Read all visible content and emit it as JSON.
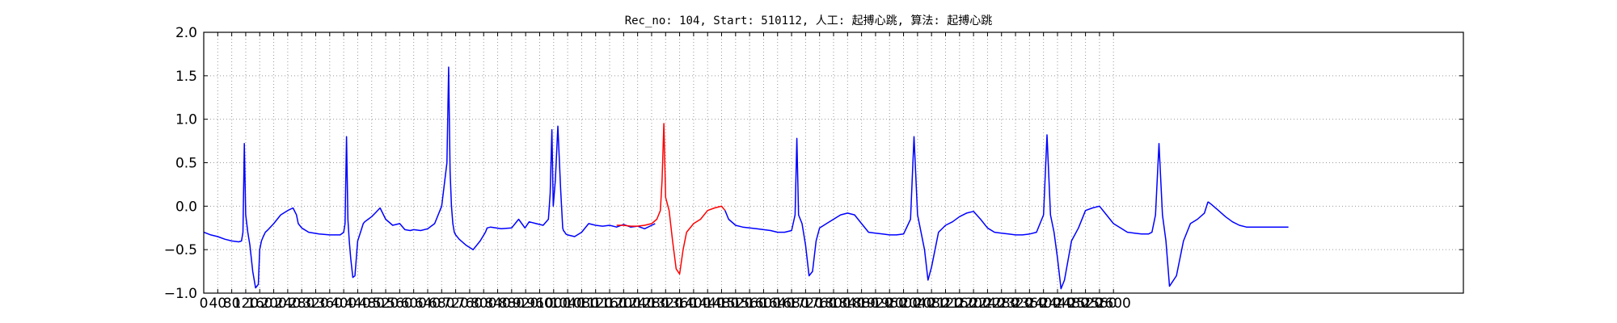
{
  "chart_data": {
    "type": "line",
    "title": "Rec_no: 104, Start: 510112, 人工: 起搏心跳, 算法: 起搏心跳",
    "xlabel": "",
    "ylabel": "",
    "xlim": [
      0,
      3600
    ],
    "ylim": [
      -1.0,
      2.0
    ],
    "grid": true,
    "xticks": [
      0,
      40,
      80,
      120,
      160,
      200,
      240,
      280,
      320,
      360,
      400,
      440,
      480,
      520,
      560,
      600,
      640,
      680,
      720,
      760,
      800,
      840,
      880,
      920,
      960,
      1000,
      1040,
      1080,
      1120,
      1160,
      1200,
      1240,
      1280,
      1320,
      1360,
      1400,
      1440,
      1480,
      1520,
      1560,
      1600,
      1640,
      1680,
      1720,
      1760,
      1800,
      1840,
      1880,
      1920,
      1960,
      2000,
      2040,
      2080,
      2120,
      2160,
      2200,
      2240,
      2280,
      2320,
      2360,
      2400,
      2440,
      2480,
      2520,
      2560,
      2600
    ],
    "xtick_labels": [
      "0",
      "40",
      "80",
      "120",
      "160",
      "200",
      "240",
      "280",
      "320",
      "360",
      "400",
      "440",
      "480",
      "520",
      "560",
      "600",
      "640",
      "680",
      "720",
      "760",
      "800",
      "840",
      "880",
      "920",
      "960",
      "1000",
      "1040",
      "1080",
      "1120",
      "1160",
      "1200",
      "1240",
      "1280",
      "1320",
      "1360",
      "1400",
      "1440",
      "1480",
      "1520",
      "1560",
      "1600",
      "1640",
      "1680",
      "1720",
      "1760",
      "1800",
      "1840",
      "1880",
      "1920",
      "1960",
      "2000",
      "2040",
      "2080",
      "2120",
      "2160",
      "2200",
      "2240",
      "2280",
      "2320",
      "2360",
      "2400",
      "2440",
      "2480",
      "2520",
      "2560",
      "2600"
    ],
    "yticks": [
      -1.0,
      -0.5,
      0.0,
      0.5,
      1.0,
      1.5,
      2.0
    ],
    "ytick_labels": [
      "−1.0",
      "−0.5",
      "0.0",
      "0.5",
      "1.0",
      "1.5",
      "2.0"
    ],
    "series": [
      {
        "color": "#0000ff",
        "x": [
          0,
          20,
          40,
          60,
          80,
          100,
          108,
          112,
          116,
          120,
          126,
          132,
          140,
          148,
          156,
          160,
          165,
          170,
          176,
          184,
          200,
          220,
          240,
          255,
          265,
          270,
          280,
          300,
          330,
          360,
          390,
          400,
          404,
          408,
          412,
          416,
          420,
          426,
          432,
          440,
          448,
          456,
          460,
          470,
          480,
          490,
          504,
          520,
          540,
          560,
          575,
          590,
          600,
          620,
          640,
          660,
          680,
          695,
          700,
          704,
          708,
          712,
          716,
          720,
          730,
          750,
          770,
          790,
          805,
          810,
          820,
          850,
          880,
          900,
          918,
          930,
          950,
          970,
          985,
          990,
          995,
          999,
          1005,
          1012,
          1020,
          1026,
          1028,
          1032,
          1035,
          1040,
          1060,
          1080,
          1100,
          1120,
          1140,
          1160,
          1180,
          1200,
          1220,
          1240,
          1260,
          1280,
          1290
        ],
        "y": [
          -0.3,
          -0.33,
          -0.35,
          -0.38,
          -0.4,
          -0.41,
          -0.4,
          -0.3,
          0.72,
          -0.1,
          -0.3,
          -0.45,
          -0.75,
          -0.94,
          -0.9,
          -0.5,
          -0.4,
          -0.35,
          -0.3,
          -0.27,
          -0.2,
          -0.1,
          -0.05,
          -0.02,
          -0.1,
          -0.2,
          -0.25,
          -0.3,
          -0.32,
          -0.33,
          -0.33,
          -0.3,
          -0.2,
          0.8,
          -0.15,
          -0.4,
          -0.6,
          -0.82,
          -0.8,
          -0.4,
          -0.3,
          -0.2,
          -0.18,
          -0.15,
          -0.12,
          -0.08,
          -0.02,
          -0.15,
          -0.22,
          -0.2,
          -0.27,
          -0.28,
          -0.27,
          -0.28,
          -0.26,
          -0.2,
          0.0,
          0.5,
          1.6,
          0.4,
          0.0,
          -0.2,
          -0.3,
          -0.33,
          -0.38,
          -0.45,
          -0.5,
          -0.4,
          -0.3,
          -0.25,
          -0.24,
          -0.26,
          -0.25,
          -0.15,
          -0.25,
          -0.18,
          -0.2,
          -0.22,
          -0.15,
          0.15,
          0.88,
          0.0,
          0.3,
          0.92,
          0.2,
          -0.25,
          -0.28,
          -0.3,
          -0.32,
          -0.33,
          -0.35,
          -0.3,
          -0.2,
          -0.22,
          -0.23,
          -0.22,
          -0.24,
          -0.21,
          -0.24,
          -0.23,
          -0.26,
          -0.22,
          -0.2
        ]
      },
      {
        "color": "#ff0000",
        "x": [
          1180,
          1200,
          1220,
          1240,
          1260,
          1280,
          1295,
          1305,
          1310,
          1315,
          1320,
          1330,
          1340,
          1350,
          1360,
          1370,
          1380,
          1400,
          1420,
          1440,
          1460,
          1480,
          1490
        ],
        "y": [
          -0.22,
          -0.22,
          -0.23,
          -0.23,
          -0.22,
          -0.2,
          -0.15,
          -0.05,
          0.3,
          0.95,
          0.1,
          -0.05,
          -0.4,
          -0.72,
          -0.78,
          -0.5,
          -0.3,
          -0.2,
          -0.15,
          -0.05,
          -0.02,
          0.0,
          -0.05
        ]
      },
      {
        "color": "#0000ff",
        "x": [
          1490,
          1500,
          1520,
          1540,
          1560,
          1580,
          1600,
          1620,
          1640,
          1660,
          1680,
          1690,
          1695,
          1700,
          1710,
          1720,
          1730,
          1740,
          1750,
          1760,
          1780,
          1800,
          1820,
          1840,
          1860,
          1880,
          1900,
          1920,
          1940,
          1960,
          1980,
          2000,
          2020,
          2030,
          2040,
          2050,
          2060,
          2070,
          2080,
          2100,
          2120,
          2140,
          2160,
          2180,
          2200,
          2220,
          2240,
          2260,
          2280,
          2300,
          2320,
          2340,
          2360,
          2380,
          2400,
          2410,
          2420,
          2430,
          2440,
          2450,
          2460,
          2480,
          2500,
          2520,
          2540,
          2560,
          2580,
          2600,
          2620,
          2640,
          2660,
          2680,
          2700,
          2710,
          2720,
          2730,
          2740,
          2750,
          2760,
          2780,
          2800,
          2820,
          2840,
          2860,
          2870
        ],
        "y": [
          -0.05,
          -0.15,
          -0.22,
          -0.24,
          -0.25,
          -0.26,
          -0.27,
          -0.28,
          -0.3,
          -0.3,
          -0.28,
          -0.1,
          0.78,
          -0.1,
          -0.2,
          -0.45,
          -0.8,
          -0.75,
          -0.4,
          -0.25,
          -0.2,
          -0.15,
          -0.1,
          -0.08,
          -0.1,
          -0.2,
          -0.3,
          -0.31,
          -0.32,
          -0.33,
          -0.33,
          -0.32,
          -0.15,
          0.8,
          -0.1,
          -0.3,
          -0.5,
          -0.85,
          -0.7,
          -0.3,
          -0.22,
          -0.18,
          -0.12,
          -0.08,
          -0.06,
          -0.15,
          -0.25,
          -0.3,
          -0.31,
          -0.32,
          -0.33,
          -0.33,
          -0.32,
          -0.3,
          -0.1,
          0.82,
          -0.1,
          -0.3,
          -0.6,
          -0.95,
          -0.85,
          -0.4,
          -0.25,
          -0.05,
          -0.02,
          0.0,
          -0.1,
          -0.2,
          -0.25,
          -0.3,
          -0.31,
          -0.32,
          -0.32,
          -0.3,
          -0.1,
          0.72,
          -0.1,
          -0.4,
          -0.92,
          -0.8,
          -0.4,
          -0.2,
          -0.15,
          -0.08,
          0.05
        ]
      },
      {
        "color": "#0000ff",
        "x": [
          2870,
          2880,
          2900,
          2920,
          2940,
          2960,
          2980,
          3000,
          3020,
          3040,
          3060,
          3080,
          3100
        ],
        "y": [
          0.05,
          0.02,
          -0.05,
          -0.12,
          -0.18,
          -0.22,
          -0.24,
          -0.24,
          -0.24,
          -0.24,
          -0.24,
          -0.24,
          -0.24
        ]
      }
    ]
  }
}
